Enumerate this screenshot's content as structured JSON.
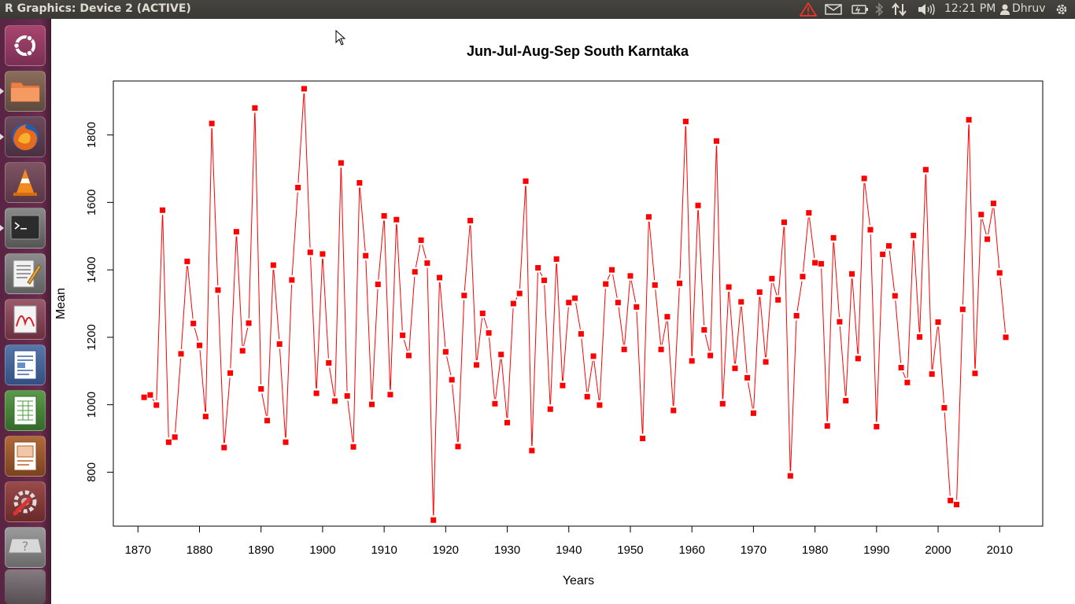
{
  "window": {
    "title": "R Graphics: Device 2 (ACTIVE)"
  },
  "panel": {
    "time": "12:21 PM",
    "user": "Dhruv"
  },
  "launcher": {
    "items": [
      "dash",
      "files",
      "firefox",
      "vlc",
      "terminal",
      "text-editor",
      "document-viewer",
      "writer",
      "calc",
      "impress",
      "system-settings",
      "unknown-app"
    ]
  },
  "colors": {
    "series": "#ff0000",
    "panel_bg": "#3c3b37",
    "launcher_bg": "#5e2750"
  },
  "chart_data": {
    "type": "line",
    "title": "Jun-Jul-Aug-Sep South Karntaka",
    "xlabel": "Years",
    "ylabel": "Mean",
    "xlim": [
      1866,
      2017
    ],
    "ylim": [
      640,
      1960
    ],
    "xticks": [
      1870,
      1880,
      1890,
      1900,
      1910,
      1920,
      1930,
      1940,
      1950,
      1960,
      1970,
      1980,
      1990,
      2000,
      2010
    ],
    "yticks": [
      800,
      1000,
      1200,
      1400,
      1600,
      1800
    ],
    "grid": false,
    "series": [
      {
        "x_start": 1871,
        "x": [
          1871,
          1872,
          1873,
          1874,
          1875,
          1876,
          1877,
          1878,
          1879,
          1880,
          1881,
          1882,
          1883,
          1884,
          1885,
          1886,
          1887,
          1888,
          1889,
          1890,
          1891,
          1892,
          1893,
          1894,
          1895,
          1896,
          1897,
          1898,
          1899,
          1900,
          1901,
          1902,
          1903,
          1904,
          1905,
          1906,
          1907,
          1908,
          1909,
          1910,
          1911,
          1912,
          1913,
          1914,
          1915,
          1916,
          1917,
          1918,
          1919,
          1920,
          1921,
          1922,
          1923,
          1924,
          1925,
          1926,
          1927,
          1928,
          1929,
          1930,
          1931,
          1932,
          1933,
          1934,
          1935,
          1936,
          1937,
          1938,
          1939,
          1940,
          1941,
          1942,
          1943,
          1944,
          1945,
          1946,
          1947,
          1948,
          1949,
          1950,
          1951,
          1952,
          1953,
          1954,
          1955,
          1956,
          1957,
          1958,
          1959,
          1960,
          1961,
          1962,
          1963,
          1964,
          1965,
          1966,
          1967,
          1968,
          1969,
          1970,
          1971,
          1972,
          1973,
          1974,
          1975,
          1976,
          1977,
          1978,
          1979,
          1980,
          1981,
          1982,
          1983,
          1984,
          1985,
          1986,
          1987,
          1988,
          1989,
          1990,
          1991,
          1992,
          1993,
          1994,
          1995,
          1996,
          1997,
          1998,
          1999,
          2000,
          2001,
          2002,
          2003,
          2004,
          2005,
          2006,
          2007,
          2008,
          2009,
          2010,
          2011
        ],
        "values": [
          1022,
          1029,
          999,
          1577,
          889,
          904,
          1151,
          1425,
          1241,
          1176,
          965,
          1834,
          1340,
          873,
          1094,
          1513,
          1160,
          1242,
          1880,
          1047,
          953,
          1414,
          1180,
          889,
          1370,
          1644,
          1937,
          1452,
          1034,
          1447,
          1124,
          1011,
          1717,
          1026,
          875,
          1658,
          1442,
          1001,
          1357,
          1560,
          1030,
          1549,
          1206,
          1146,
          1394,
          1488,
          1420,
          658,
          1377,
          1157,
          1074,
          876,
          1324,
          1546,
          1118,
          1271,
          1213,
          1003,
          1149,
          947,
          1300,
          1330,
          1663,
          864,
          1406,
          1369,
          987,
          1432,
          1057,
          1303,
          1316,
          1210,
          1024,
          1144,
          999,
          1358,
          1400,
          1303,
          1164,
          1382,
          1290,
          900,
          1557,
          1355,
          1164,
          1261,
          983,
          1360,
          1840,
          1130,
          1591,
          1222,
          1146,
          1782,
          1003,
          1349,
          1108,
          1305,
          1080,
          975,
          1334,
          1127,
          1374,
          1311,
          1541,
          789,
          1264,
          1380,
          1569,
          1421,
          1418,
          937,
          1495,
          1246,
          1012,
          1388,
          1137,
          1671,
          1519,
          935,
          1446,
          1471,
          1323,
          1110,
          1066,
          1502,
          1201,
          1697,
          1091,
          1245,
          991,
          716,
          704,
          1283,
          1845,
          1093,
          1564,
          1491,
          1597,
          1391,
          1200
        ]
      }
    ]
  }
}
